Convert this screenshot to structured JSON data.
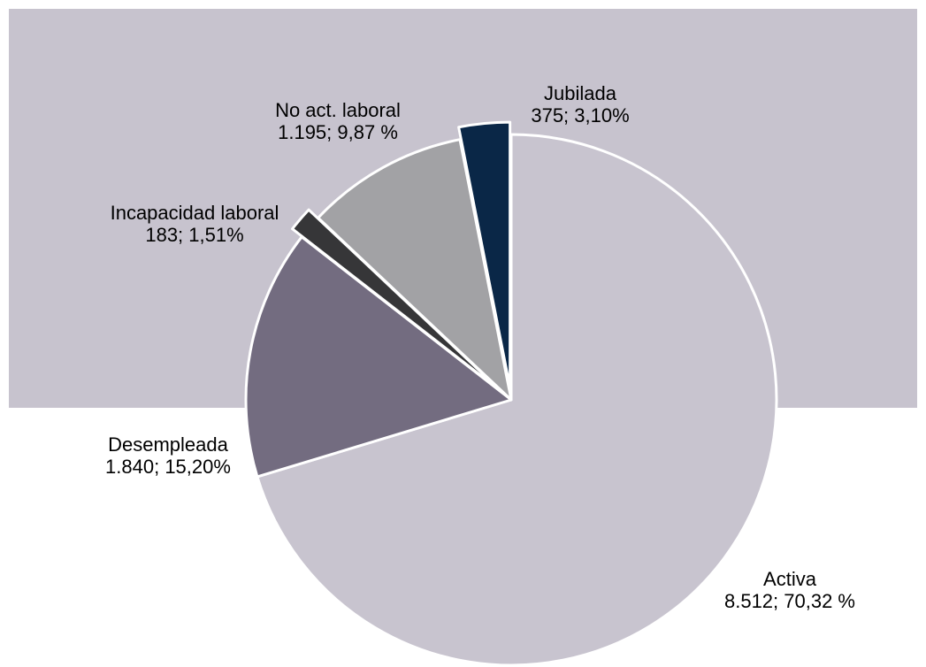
{
  "chart_data": {
    "type": "pie",
    "title": "",
    "slices": [
      {
        "name": "Activa",
        "value": 8512,
        "label": "8.512; 70,32 %",
        "color": "#c8c4cf",
        "exploded": false
      },
      {
        "name": "Desempleada",
        "value": 1840,
        "label": "1.840; 15,20%",
        "color": "#736c80",
        "exploded": false
      },
      {
        "name": "Incapacidad laboral",
        "value": 183,
        "label": "183; 1,51%",
        "color": "#363638",
        "exploded": true
      },
      {
        "name": "No act. laboral",
        "value": 1195,
        "label": "1.195; 9,87 %",
        "color": "#a2a2a5",
        "exploded": false
      },
      {
        "name": "Jubilada",
        "value": 375,
        "label": "375; 3,10%",
        "color": "#0a2747",
        "exploded": true
      }
    ],
    "start_angle_deg": 0,
    "direction": "clockwise",
    "legend": "none",
    "background_color": "#c7c3ce"
  }
}
